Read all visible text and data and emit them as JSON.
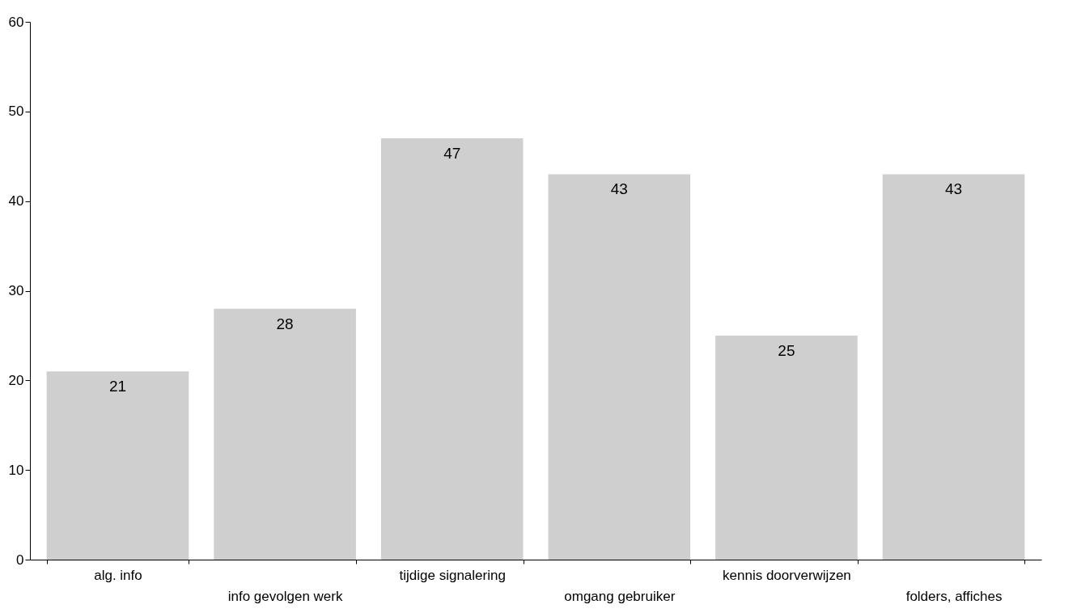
{
  "chart_data": {
    "type": "bar",
    "categories": [
      "alg. info",
      "info gevolgen werk",
      "tijdige signalering",
      "omgang gebruiker",
      "kennis doorverwijzen",
      "folders, affiches"
    ],
    "values": [
      21,
      28,
      47,
      43,
      25,
      43
    ],
    "color": "#cfcfcf",
    "ylim": [
      0,
      60
    ],
    "yticks": [
      0,
      10,
      20,
      30,
      40,
      50,
      60
    ],
    "grid": false,
    "data_labels": true
  }
}
